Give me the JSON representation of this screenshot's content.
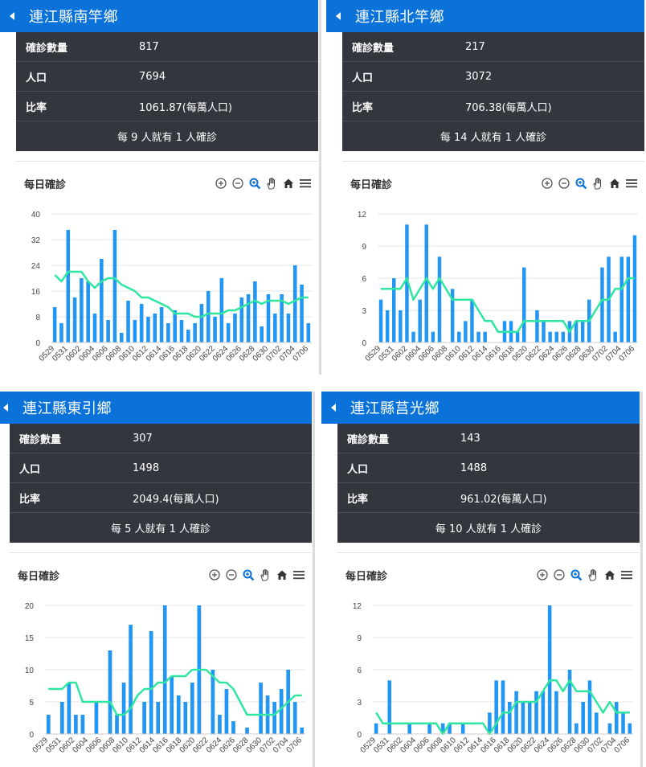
{
  "panels": [
    {
      "title": "連江縣南竿鄉",
      "stats": [
        {
          "label": "確診數量",
          "value": "817"
        },
        {
          "label": "人口",
          "value": "7694"
        },
        {
          "label": "比率",
          "value": "1061.87(每萬人口)"
        }
      ],
      "footer": "每 9 人就有 1 人確診",
      "chart_title": "每日確診",
      "chart_data": {
        "type": "bar",
        "ylim": [
          0,
          40
        ],
        "yticks": [
          "0",
          "8",
          "16",
          "24",
          "32",
          "40"
        ],
        "ytick_values": [
          0,
          8,
          16,
          24,
          32,
          40
        ],
        "xtick_labels": [
          "0529",
          "0531",
          "0602",
          "0604",
          "0606",
          "0608",
          "0610",
          "0612",
          "0614",
          "0616",
          "0618",
          "0620",
          "0622",
          "0624",
          "0626",
          "0628",
          "0630",
          "0702",
          "0704",
          "0706"
        ],
        "bars": [
          11,
          6,
          35,
          14,
          20,
          19,
          9,
          26,
          7,
          35,
          3,
          13,
          7,
          12,
          8,
          9,
          11,
          6,
          10,
          7,
          4,
          6,
          12,
          16,
          8,
          20,
          6,
          9,
          14,
          15,
          19,
          5,
          15,
          9,
          15,
          9,
          24,
          18,
          6
        ],
        "line": [
          21,
          19,
          22,
          22,
          22,
          19,
          17,
          19,
          20,
          20,
          18,
          17,
          16,
          14,
          14,
          13,
          12,
          11,
          9,
          9,
          9,
          8,
          8,
          9,
          9,
          9,
          10,
          10,
          11,
          12,
          13,
          12,
          13,
          13,
          13,
          12,
          13,
          14,
          14
        ]
      }
    },
    {
      "title": "連江縣北竿鄉",
      "stats": [
        {
          "label": "確診數量",
          "value": "217"
        },
        {
          "label": "人口",
          "value": "3072"
        },
        {
          "label": "比率",
          "value": "706.38(每萬人口)"
        }
      ],
      "footer": "每 14 人就有 1 人確診",
      "chart_title": "每日確診",
      "chart_data": {
        "type": "bar",
        "ylim": [
          0,
          12
        ],
        "yticks": [
          "0",
          "3",
          "6",
          "9",
          "12"
        ],
        "ytick_values": [
          0,
          3,
          6,
          9,
          12
        ],
        "xtick_labels": [
          "0529",
          "0531",
          "0602",
          "0604",
          "0606",
          "0608",
          "0610",
          "0612",
          "0614",
          "0616",
          "0618",
          "0620",
          "0622",
          "0624",
          "0626",
          "0628",
          "0630",
          "0702",
          "0704",
          "0706"
        ],
        "bars": [
          4,
          3,
          6,
          3,
          11,
          1,
          4,
          11,
          1,
          8,
          0,
          5,
          1,
          2,
          4,
          1,
          1,
          0,
          0,
          2,
          2,
          1,
          7,
          0,
          3,
          2,
          1,
          1,
          1,
          2,
          2,
          2,
          4,
          0,
          7,
          8,
          1,
          8,
          8,
          10
        ],
        "line": [
          5,
          5,
          5,
          5,
          6,
          4,
          5,
          6,
          5,
          6,
          5,
          4,
          4,
          4,
          4,
          3,
          2,
          2,
          1,
          1,
          1,
          1,
          2,
          2,
          2,
          2,
          2,
          2,
          2,
          1,
          2,
          2,
          2,
          3,
          4,
          4,
          5,
          5,
          6,
          6
        ]
      }
    },
    {
      "title": "連江縣東引鄉",
      "stats": [
        {
          "label": "確診數量",
          "value": "307"
        },
        {
          "label": "人口",
          "value": "1498"
        },
        {
          "label": "比率",
          "value": "2049.4(每萬人口)"
        }
      ],
      "footer": "每 5 人就有 1 人確診",
      "chart_title": "每日確診",
      "chart_data": {
        "type": "bar",
        "ylim": [
          0,
          20
        ],
        "yticks": [
          "0",
          "5",
          "10",
          "15",
          "20"
        ],
        "ytick_values": [
          0,
          5,
          10,
          15,
          20
        ],
        "xtick_labels": [
          "0529",
          "0531",
          "0602",
          "0604",
          "0606",
          "0608",
          "0610",
          "0612",
          "0614",
          "0616",
          "0618",
          "0620",
          "0622",
          "0624",
          "0626",
          "0628",
          "0630",
          "0702",
          "0704",
          "0706"
        ],
        "bars": [
          3,
          0,
          5,
          8,
          3,
          3,
          0,
          5,
          0,
          13,
          3,
          8,
          17,
          0,
          5,
          16,
          5,
          20,
          9,
          6,
          5,
          8,
          20,
          0,
          10,
          3,
          7,
          2,
          0,
          1,
          0,
          8,
          6,
          5,
          7,
          10,
          5,
          1
        ],
        "line": [
          7,
          7,
          7,
          8,
          8,
          5,
          5,
          5,
          5,
          5,
          3,
          3,
          4,
          6,
          7,
          7,
          8,
          8,
          9,
          9,
          9,
          10,
          10,
          10,
          9,
          8,
          8,
          7,
          5,
          3,
          3,
          3,
          3,
          3,
          4,
          5,
          6,
          6
        ]
      }
    },
    {
      "title": "連江縣莒光鄉",
      "stats": [
        {
          "label": "確診數量",
          "value": "143"
        },
        {
          "label": "人口",
          "value": "1488"
        },
        {
          "label": "比率",
          "value": "961.02(每萬人口)"
        }
      ],
      "footer": "每 10 人就有 1 人確診",
      "chart_title": "每日確診",
      "chart_data": {
        "type": "bar",
        "ylim": [
          0,
          12
        ],
        "yticks": [
          "0",
          "3",
          "6",
          "9",
          "12"
        ],
        "ytick_values": [
          0,
          3,
          6,
          9,
          12
        ],
        "xtick_labels": [
          "0529",
          "0531",
          "0602",
          "0604",
          "0606",
          "0608",
          "0610",
          "0612",
          "0614",
          "0616",
          "0618",
          "0620",
          "0622",
          "0624",
          "0626",
          "0628",
          "0630",
          "0702",
          "0704",
          "0706"
        ],
        "bars": [
          1,
          0,
          5,
          0,
          0,
          1,
          0,
          0,
          1,
          0,
          1,
          1,
          0,
          1,
          0,
          0,
          0,
          2,
          5,
          5,
          3,
          4,
          3,
          3,
          4,
          4,
          12,
          4,
          0,
          6,
          1,
          3,
          5,
          2,
          0,
          1,
          3,
          2,
          1
        ],
        "line": [
          2,
          1,
          1,
          1,
          1,
          1,
          1,
          1,
          1,
          1,
          0,
          1,
          1,
          1,
          1,
          1,
          1,
          0,
          1,
          2,
          2,
          3,
          3,
          3,
          3,
          4,
          5,
          5,
          4,
          5,
          4,
          4,
          4,
          3,
          2,
          3,
          2,
          2,
          2
        ]
      }
    }
  ],
  "toolbar_icons": [
    "zoom-in-icon",
    "zoom-out-icon",
    "magnify-icon",
    "pan-hand-icon",
    "home-icon",
    "menu-icon"
  ],
  "colors": {
    "header": "#0a72d9",
    "stats_bg": "#33373d",
    "bar": "#2196f3",
    "line": "#2ee6a0"
  }
}
